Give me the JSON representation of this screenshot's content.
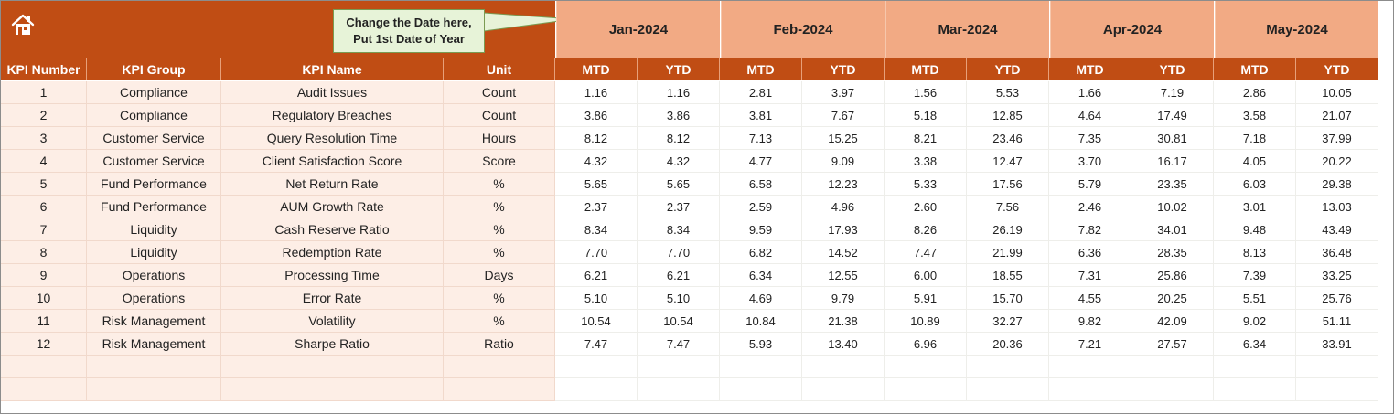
{
  "note": {
    "line1": "Change the Date here,",
    "line2": "Put 1st Date of Year"
  },
  "colors": {
    "header": "#c04d14",
    "month_band": "#f2aa84",
    "left_fill": "#fdeee6",
    "note_fill": "#e7f3d8"
  },
  "icons": {
    "home": "home-icon"
  },
  "months": [
    "Jan-2024",
    "Feb-2024",
    "Mar-2024",
    "Apr-2024",
    "May-2024"
  ],
  "columns": {
    "kpi_number": "KPI Number",
    "kpi_group": "KPI Group",
    "kpi_name": "KPI Name",
    "unit": "Unit",
    "mtd": "MTD",
    "ytd": "YTD"
  },
  "rows": [
    {
      "num": "1",
      "group": "Compliance",
      "name": "Audit Issues",
      "unit": "Count",
      "values": [
        "1.16",
        "1.16",
        "2.81",
        "3.97",
        "1.56",
        "5.53",
        "1.66",
        "7.19",
        "2.86",
        "10.05"
      ]
    },
    {
      "num": "2",
      "group": "Compliance",
      "name": "Regulatory Breaches",
      "unit": "Count",
      "values": [
        "3.86",
        "3.86",
        "3.81",
        "7.67",
        "5.18",
        "12.85",
        "4.64",
        "17.49",
        "3.58",
        "21.07"
      ]
    },
    {
      "num": "3",
      "group": "Customer Service",
      "name": "Query Resolution Time",
      "unit": "Hours",
      "values": [
        "8.12",
        "8.12",
        "7.13",
        "15.25",
        "8.21",
        "23.46",
        "7.35",
        "30.81",
        "7.18",
        "37.99"
      ]
    },
    {
      "num": "4",
      "group": "Customer Service",
      "name": "Client Satisfaction Score",
      "unit": "Score",
      "values": [
        "4.32",
        "4.32",
        "4.77",
        "9.09",
        "3.38",
        "12.47",
        "3.70",
        "16.17",
        "4.05",
        "20.22"
      ]
    },
    {
      "num": "5",
      "group": "Fund Performance",
      "name": "Net Return Rate",
      "unit": "%",
      "values": [
        "5.65",
        "5.65",
        "6.58",
        "12.23",
        "5.33",
        "17.56",
        "5.79",
        "23.35",
        "6.03",
        "29.38"
      ]
    },
    {
      "num": "6",
      "group": "Fund Performance",
      "name": "AUM Growth Rate",
      "unit": "%",
      "values": [
        "2.37",
        "2.37",
        "2.59",
        "4.96",
        "2.60",
        "7.56",
        "2.46",
        "10.02",
        "3.01",
        "13.03"
      ]
    },
    {
      "num": "7",
      "group": "Liquidity",
      "name": "Cash Reserve Ratio",
      "unit": "%",
      "values": [
        "8.34",
        "8.34",
        "9.59",
        "17.93",
        "8.26",
        "26.19",
        "7.82",
        "34.01",
        "9.48",
        "43.49"
      ]
    },
    {
      "num": "8",
      "group": "Liquidity",
      "name": "Redemption Rate",
      "unit": "%",
      "values": [
        "7.70",
        "7.70",
        "6.82",
        "14.52",
        "7.47",
        "21.99",
        "6.36",
        "28.35",
        "8.13",
        "36.48"
      ]
    },
    {
      "num": "9",
      "group": "Operations",
      "name": "Processing Time",
      "unit": "Days",
      "values": [
        "6.21",
        "6.21",
        "6.34",
        "12.55",
        "6.00",
        "18.55",
        "7.31",
        "25.86",
        "7.39",
        "33.25"
      ]
    },
    {
      "num": "10",
      "group": "Operations",
      "name": "Error Rate",
      "unit": "%",
      "values": [
        "5.10",
        "5.10",
        "4.69",
        "9.79",
        "5.91",
        "15.70",
        "4.55",
        "20.25",
        "5.51",
        "25.76"
      ]
    },
    {
      "num": "11",
      "group": "Risk Management",
      "name": "Volatility",
      "unit": "%",
      "values": [
        "10.54",
        "10.54",
        "10.84",
        "21.38",
        "10.89",
        "32.27",
        "9.82",
        "42.09",
        "9.02",
        "51.11"
      ]
    },
    {
      "num": "12",
      "group": "Risk Management",
      "name": "Sharpe Ratio",
      "unit": "Ratio",
      "values": [
        "7.47",
        "7.47",
        "5.93",
        "13.40",
        "6.96",
        "20.36",
        "7.21",
        "27.57",
        "6.34",
        "33.91"
      ]
    }
  ]
}
